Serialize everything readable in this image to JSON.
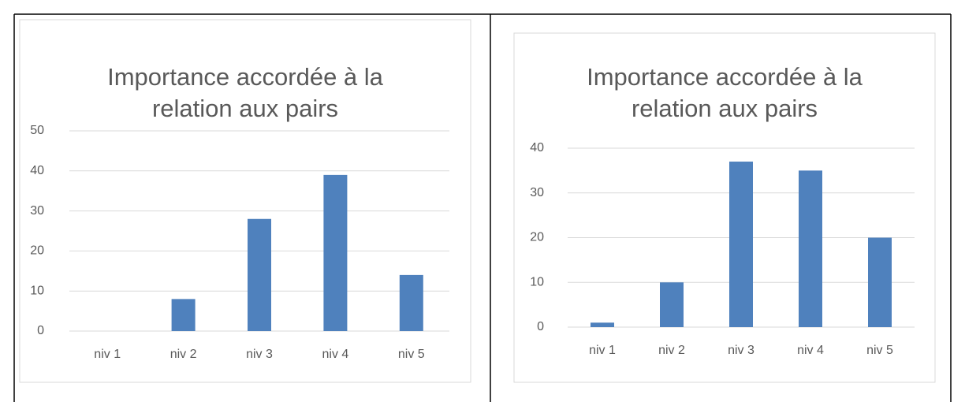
{
  "chart_data": [
    {
      "type": "bar",
      "title": [
        "Importance accordée à la",
        "relation aux pairs"
      ],
      "categories": [
        "niv 1",
        "niv 2",
        "niv 3",
        "niv 4",
        "niv 5"
      ],
      "values": [
        0,
        8,
        28,
        39,
        14
      ],
      "color": "#4f81bd",
      "ylim": [
        0,
        50
      ],
      "yticks": [
        0,
        10,
        20,
        30,
        40,
        50
      ],
      "grid": true
    },
    {
      "type": "bar",
      "title": [
        "Importance accordée à la",
        "relation aux pairs"
      ],
      "categories": [
        "niv 1",
        "niv 2",
        "niv 3",
        "niv 4",
        "niv 5"
      ],
      "values": [
        1,
        10,
        37,
        35,
        20
      ],
      "color": "#4f81bd",
      "ylim": [
        0,
        40
      ],
      "yticks": [
        0,
        10,
        20,
        30,
        40
      ],
      "grid": true
    }
  ]
}
